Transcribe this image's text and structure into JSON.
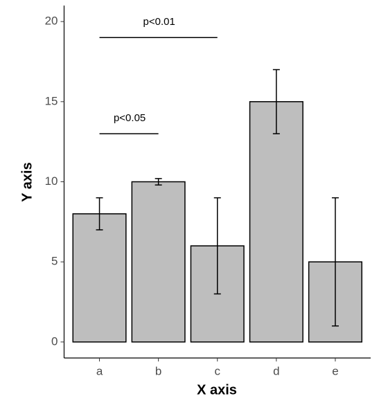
{
  "chart_data": {
    "type": "bar",
    "x_label": "X axis",
    "y_label": "Y axis",
    "categories": [
      "a",
      "b",
      "c",
      "d",
      "e"
    ],
    "values": [
      8,
      10,
      6,
      15,
      5
    ],
    "errors": [
      1,
      0.2,
      3,
      2,
      4
    ],
    "color": "#bebebe",
    "ylim": [
      -1,
      21
    ],
    "yticks": [
      0,
      5,
      10,
      15,
      20
    ],
    "annotations": [
      {
        "label": "p<0.05",
        "y": 13,
        "from": "a",
        "to": "b"
      },
      {
        "label": "p<0.01",
        "y": 19,
        "from": "a",
        "to": "c"
      }
    ]
  }
}
